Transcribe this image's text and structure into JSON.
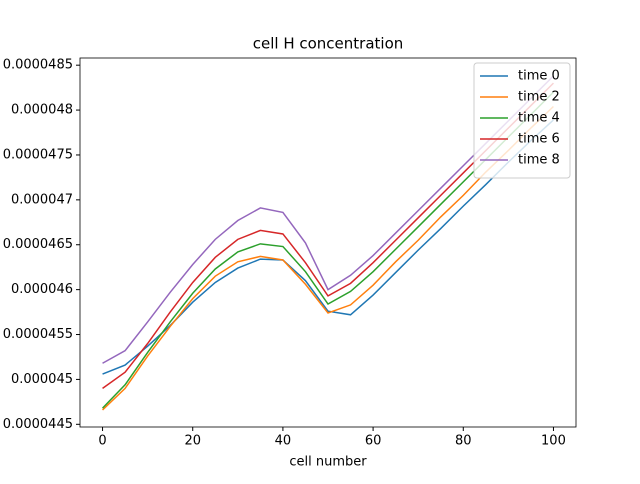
{
  "chart_data": {
    "type": "line",
    "title": "cell H concentration",
    "x_label": "cell number",
    "x": [
      0,
      5,
      10,
      15,
      20,
      25,
      30,
      35,
      40,
      45,
      50,
      55,
      60,
      65,
      70,
      75,
      80,
      85,
      90,
      95,
      100
    ],
    "series": [
      {
        "name": "time 0",
        "color": "#1f77b4",
        "values": [
          4.506e-05,
          4.516e-05,
          4.537e-05,
          4.56e-05,
          4.586e-05,
          4.608e-05,
          4.624e-05,
          4.634e-05,
          4.633e-05,
          4.61e-05,
          4.576e-05,
          4.572e-05,
          4.594e-05,
          4.619e-05,
          4.644e-05,
          4.668e-05,
          4.693e-05,
          4.717e-05,
          4.742e-05,
          4.766e-05,
          4.789e-05
        ]
      },
      {
        "name": "time 2",
        "color": "#ff7f0e",
        "values": [
          4.466e-05,
          4.49e-05,
          4.526e-05,
          4.559e-05,
          4.59e-05,
          4.615e-05,
          4.631e-05,
          4.637e-05,
          4.633e-05,
          4.606e-05,
          4.574e-05,
          4.583e-05,
          4.605e-05,
          4.631e-05,
          4.655e-05,
          4.681e-05,
          4.705e-05,
          4.731e-05,
          4.755e-05,
          4.78e-05,
          4.804e-05
        ]
      },
      {
        "name": "time 4",
        "color": "#2ca02c",
        "values": [
          4.468e-05,
          4.494e-05,
          4.53e-05,
          4.564e-05,
          4.596e-05,
          4.623e-05,
          4.642e-05,
          4.651e-05,
          4.648e-05,
          4.62e-05,
          4.584e-05,
          4.598e-05,
          4.62e-05,
          4.645e-05,
          4.67e-05,
          4.695e-05,
          4.72e-05,
          4.745e-05,
          4.77e-05,
          4.795e-05,
          4.82e-05
        ]
      },
      {
        "name": "time 6",
        "color": "#d62728",
        "values": [
          4.49e-05,
          4.508e-05,
          4.54e-05,
          4.575e-05,
          4.608e-05,
          4.636e-05,
          4.656e-05,
          4.666e-05,
          4.662e-05,
          4.63e-05,
          4.593e-05,
          4.607e-05,
          4.63e-05,
          4.655e-05,
          4.68e-05,
          4.705e-05,
          4.73e-05,
          4.755e-05,
          4.78e-05,
          4.805e-05,
          4.83e-05
        ]
      },
      {
        "name": "time 8",
        "color": "#9467bd",
        "values": [
          4.518e-05,
          4.532e-05,
          4.564e-05,
          4.597e-05,
          4.628e-05,
          4.656e-05,
          4.677e-05,
          4.691e-05,
          4.686e-05,
          4.652e-05,
          4.6e-05,
          4.616e-05,
          4.638e-05,
          4.663e-05,
          4.688e-05,
          4.713e-05,
          4.738e-05,
          4.763e-05,
          4.788e-05,
          4.813e-05,
          4.838e-05
        ]
      }
    ],
    "xlim": [
      -5,
      105
    ],
    "xticks": [
      0,
      20,
      40,
      60,
      80,
      100
    ],
    "ylim": [
      4.447e-05,
      4.858e-05
    ],
    "yticks": [
      4.45e-05,
      4.5e-05,
      4.55e-05,
      4.6e-05,
      4.65e-05,
      4.7e-05,
      4.75e-05,
      4.8e-05,
      4.85e-05
    ],
    "legend": "upper right"
  }
}
